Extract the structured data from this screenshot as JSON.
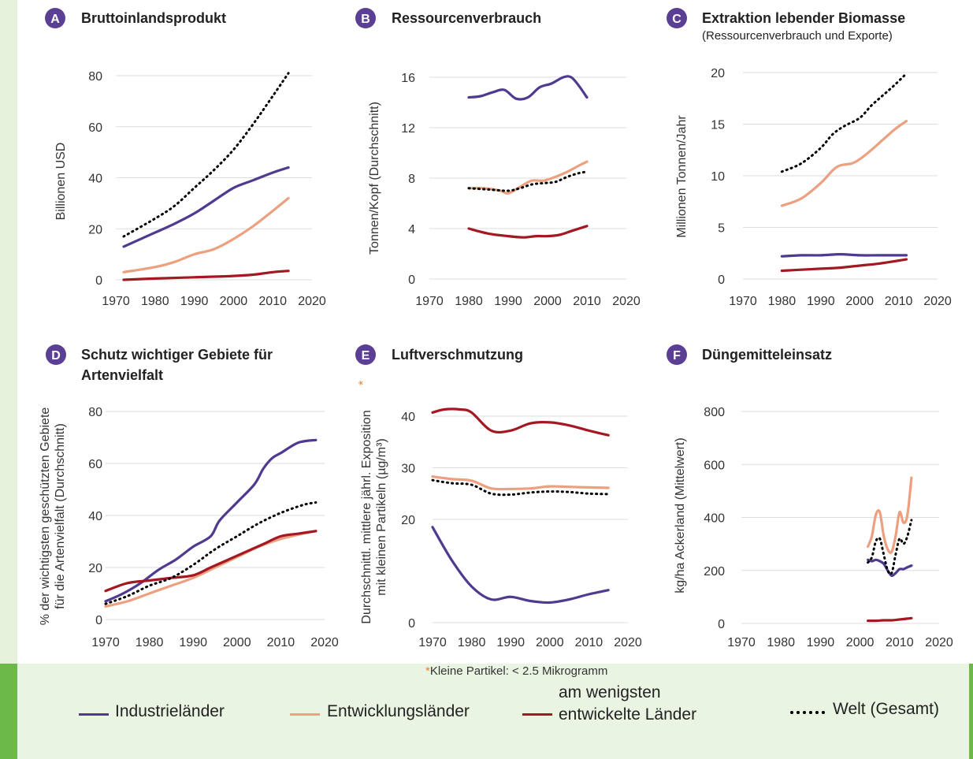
{
  "colors": {
    "industrial": "#4f3a8f",
    "developing": "#eca07f",
    "least": "#a31822",
    "world": "#000000",
    "badge": "#5b3f94",
    "grid": "#dddddd",
    "text": "#333333"
  },
  "footnote": {
    "star": "*",
    "text": "Kleine Partikel: < 2.5 Mikrogramm"
  },
  "legend": [
    {
      "key": "industrial",
      "label": "Industrieländer",
      "style": "solid"
    },
    {
      "key": "developing",
      "label": "Entwicklungsländer",
      "style": "solid"
    },
    {
      "key": "least",
      "label": "am wenigsten entwickelte Länder",
      "style": "solid"
    },
    {
      "key": "world",
      "label": "Welt (Gesamt)",
      "style": "dotted"
    }
  ],
  "chart_data": [
    {
      "id": "A",
      "type": "line",
      "title": "Bruttoinlandsprodukt",
      "subtitle": "",
      "ylabel": "Billionen USD",
      "xlim": [
        1970,
        2020
      ],
      "ylim": [
        0,
        80
      ],
      "xticks": [
        1970,
        1980,
        1990,
        2000,
        2010,
        2020
      ],
      "yticks": [
        0,
        20,
        40,
        60,
        80
      ],
      "series": [
        {
          "key": "industrial",
          "x": [
            1972,
            1980,
            1985,
            1990,
            1995,
            2000,
            2005,
            2010,
            2014
          ],
          "y": [
            13,
            18.5,
            22,
            26,
            31,
            36,
            39,
            42,
            44
          ]
        },
        {
          "key": "developing",
          "x": [
            1972,
            1980,
            1985,
            1990,
            1995,
            2000,
            2005,
            2010,
            2014
          ],
          "y": [
            3,
            5,
            7,
            10,
            12,
            16,
            21,
            27,
            32
          ]
        },
        {
          "key": "least",
          "x": [
            1972,
            1980,
            1990,
            2000,
            2005,
            2010,
            2014
          ],
          "y": [
            0,
            0.5,
            1,
            1.5,
            2,
            3,
            3.5
          ]
        },
        {
          "key": "world",
          "x": [
            1972,
            1980,
            1985,
            1990,
            1995,
            2000,
            2005,
            2010,
            2014
          ],
          "y": [
            17,
            24,
            29,
            36,
            43,
            51,
            61,
            72,
            81
          ]
        }
      ]
    },
    {
      "id": "B",
      "type": "line",
      "title": "Ressourcenverbrauch",
      "subtitle": "",
      "ylabel": "Tonnen/Kopf (Durchschnitt)",
      "xlim": [
        1970,
        2020
      ],
      "ylim": [
        0,
        16
      ],
      "xticks": [
        1970,
        1980,
        1990,
        2000,
        2010,
        2020
      ],
      "yticks": [
        0,
        4,
        8,
        12,
        16
      ],
      "series": [
        {
          "key": "industrial",
          "x": [
            1980,
            1983,
            1986,
            1989,
            1992,
            1995,
            1998,
            2001,
            2004,
            2006,
            2008,
            2010
          ],
          "y": [
            14.4,
            14.5,
            14.8,
            15.0,
            14.3,
            14.4,
            15.2,
            15.5,
            16.0,
            16.0,
            15.3,
            14.4
          ]
        },
        {
          "key": "developing",
          "x": [
            1980,
            1984,
            1988,
            1990,
            1993,
            1996,
            1999,
            2002,
            2005,
            2008,
            2010
          ],
          "y": [
            7.2,
            7.2,
            7.0,
            6.8,
            7.3,
            7.8,
            7.8,
            8.1,
            8.5,
            9.0,
            9.3
          ]
        },
        {
          "key": "least",
          "x": [
            1980,
            1985,
            1990,
            1994,
            1997,
            2000,
            2003,
            2006,
            2010
          ],
          "y": [
            4.0,
            3.6,
            3.4,
            3.3,
            3.4,
            3.4,
            3.5,
            3.8,
            4.2
          ]
        },
        {
          "key": "world",
          "x": [
            1980,
            1985,
            1990,
            1993,
            1996,
            1999,
            2002,
            2005,
            2008,
            2010
          ],
          "y": [
            7.2,
            7.1,
            7.0,
            7.2,
            7.5,
            7.6,
            7.7,
            8.1,
            8.4,
            8.5
          ]
        }
      ]
    },
    {
      "id": "C",
      "type": "line",
      "title": "Extraktion lebender Biomasse",
      "subtitle": "(Ressourcenverbrauch und Exporte)",
      "ylabel": "Millionen Tonnen/Jahr",
      "xlim": [
        1970,
        2020
      ],
      "ylim": [
        0,
        20
      ],
      "xticks": [
        1970,
        1980,
        1990,
        2000,
        2010,
        2020
      ],
      "yticks": [
        0,
        5,
        10,
        15,
        20
      ],
      "series": [
        {
          "key": "industrial",
          "x": [
            1980,
            1985,
            1990,
            1995,
            2000,
            2005,
            2012
          ],
          "y": [
            2.2,
            2.3,
            2.3,
            2.4,
            2.3,
            2.3,
            2.3
          ]
        },
        {
          "key": "developing",
          "x": [
            1980,
            1985,
            1990,
            1993,
            1995,
            1998,
            2000,
            2003,
            2006,
            2009,
            2012
          ],
          "y": [
            7.1,
            7.8,
            9.3,
            10.5,
            11.0,
            11.2,
            11.6,
            12.5,
            13.5,
            14.5,
            15.3
          ]
        },
        {
          "key": "least",
          "x": [
            1980,
            1985,
            1990,
            1995,
            2000,
            2005,
            2012
          ],
          "y": [
            0.8,
            0.9,
            1.0,
            1.1,
            1.3,
            1.5,
            1.9
          ]
        },
        {
          "key": "world",
          "x": [
            1980,
            1985,
            1990,
            1993,
            1996,
            2000,
            2003,
            2006,
            2009,
            2012
          ],
          "y": [
            10.4,
            11.2,
            12.7,
            14.0,
            14.8,
            15.6,
            16.8,
            17.8,
            18.8,
            19.9
          ]
        }
      ]
    },
    {
      "id": "D",
      "type": "line",
      "title": "Schutz wichtiger Gebiete für Artenvielfalt",
      "subtitle": "",
      "ylabel": "% der wichtigsten geschützten Gebiete für die Artenvielfalt (Durchschnitt)",
      "xlim": [
        1970,
        2020
      ],
      "ylim": [
        0,
        80
      ],
      "xticks": [
        1970,
        1980,
        1990,
        2000,
        2010,
        2020
      ],
      "yticks": [
        0,
        20,
        40,
        60,
        80
      ],
      "series": [
        {
          "key": "industrial",
          "x": [
            1970,
            1974,
            1978,
            1982,
            1986,
            1990,
            1994,
            1996,
            2000,
            2004,
            2006,
            2008,
            2010,
            2014,
            2018
          ],
          "y": [
            7,
            10,
            14,
            19,
            23,
            28,
            32,
            38,
            45,
            52,
            58,
            62,
            64,
            68,
            69
          ]
        },
        {
          "key": "developing",
          "x": [
            1970,
            1975,
            1980,
            1985,
            1990,
            1995,
            2000,
            2005,
            2010,
            2015,
            2018
          ],
          "y": [
            5,
            7,
            10,
            13,
            16,
            20,
            24,
            28,
            31,
            33,
            34
          ]
        },
        {
          "key": "least",
          "x": [
            1970,
            1975,
            1980,
            1985,
            1990,
            1994,
            1998,
            2002,
            2006,
            2010,
            2014,
            2018
          ],
          "y": [
            11,
            14,
            15,
            16,
            17,
            20,
            23,
            26,
            29,
            32,
            33,
            34
          ]
        },
        {
          "key": "world",
          "x": [
            1970,
            1975,
            1980,
            1985,
            1990,
            1995,
            2000,
            2005,
            2010,
            2015,
            2018
          ],
          "y": [
            6,
            9,
            13,
            16,
            21,
            27,
            32,
            37,
            41,
            44,
            45
          ]
        }
      ]
    },
    {
      "id": "E",
      "type": "line",
      "title": "Luftverschmutzung",
      "subtitle": "",
      "ylabel": "Durchschnittl. mittlere jährl. Exposition mit kleinen Partikeln (µg/m³)",
      "ylabel_star": "*",
      "xlim": [
        1970,
        2020
      ],
      "ylim": [
        0,
        40
      ],
      "xticks": [
        1970,
        1980,
        1990,
        2000,
        2010,
        2020
      ],
      "yticks": [
        0,
        10,
        20,
        30,
        40
      ],
      "ytick_labels": [
        "0",
        "",
        "20",
        "30",
        "40"
      ],
      "series": [
        {
          "key": "industrial",
          "x": [
            1970,
            1975,
            1980,
            1985,
            1990,
            1995,
            2000,
            2005,
            2010,
            2015
          ],
          "y": [
            18.5,
            12,
            7,
            4.5,
            5,
            4.2,
            3.9,
            4.5,
            5.5,
            6.3
          ]
        },
        {
          "key": "developing",
          "x": [
            1970,
            1975,
            1980,
            1985,
            1990,
            1995,
            2000,
            2005,
            2010,
            2015
          ],
          "y": [
            28.3,
            27.8,
            27.5,
            26.0,
            25.9,
            26.0,
            26.4,
            26.3,
            26.2,
            26.1
          ]
        },
        {
          "key": "least",
          "x": [
            1970,
            1973,
            1977,
            1980,
            1985,
            1990,
            1995,
            2000,
            2005,
            2010,
            2015
          ],
          "y": [
            40.7,
            41.3,
            41.3,
            40.7,
            37.2,
            37.2,
            38.6,
            38.8,
            38.2,
            37.2,
            36.3
          ]
        },
        {
          "key": "world",
          "x": [
            1970,
            1975,
            1980,
            1985,
            1990,
            1995,
            2000,
            2005,
            2010,
            2015
          ],
          "y": [
            27.6,
            27.0,
            26.7,
            25.0,
            24.8,
            25.2,
            25.4,
            25.3,
            25.0,
            24.9
          ]
        }
      ]
    },
    {
      "id": "F",
      "type": "line",
      "title": "Düngemitteleinsatz",
      "subtitle": "",
      "ylabel": "kg/ha Ackerland (Mittelwert)",
      "xlim": [
        1970,
        2020
      ],
      "ylim": [
        0,
        800
      ],
      "xticks": [
        1970,
        1980,
        1990,
        2000,
        2010,
        2020
      ],
      "yticks": [
        0,
        200,
        400,
        600,
        800
      ],
      "series": [
        {
          "key": "industrial",
          "x": [
            2002,
            2003,
            2004,
            2005,
            2006,
            2007,
            2008,
            2009,
            2010,
            2011,
            2012,
            2013
          ],
          "y": [
            240,
            235,
            240,
            235,
            225,
            200,
            180,
            190,
            205,
            205,
            212,
            218
          ]
        },
        {
          "key": "developing",
          "x": [
            2002,
            2003,
            2004,
            2005,
            2006,
            2007,
            2008,
            2009,
            2010,
            2011,
            2012,
            2013
          ],
          "y": [
            290,
            330,
            410,
            420,
            330,
            280,
            270,
            330,
            420,
            380,
            410,
            550
          ]
        },
        {
          "key": "least",
          "x": [
            2002,
            2004,
            2006,
            2008,
            2010,
            2012,
            2013
          ],
          "y": [
            10,
            10,
            12,
            12,
            15,
            18,
            20
          ]
        },
        {
          "key": "world",
          "x": [
            2002,
            2003,
            2004,
            2005,
            2006,
            2007,
            2008,
            2009,
            2010,
            2011,
            2012,
            2013
          ],
          "y": [
            230,
            250,
            310,
            320,
            260,
            200,
            190,
            260,
            320,
            300,
            330,
            390
          ]
        }
      ]
    }
  ]
}
